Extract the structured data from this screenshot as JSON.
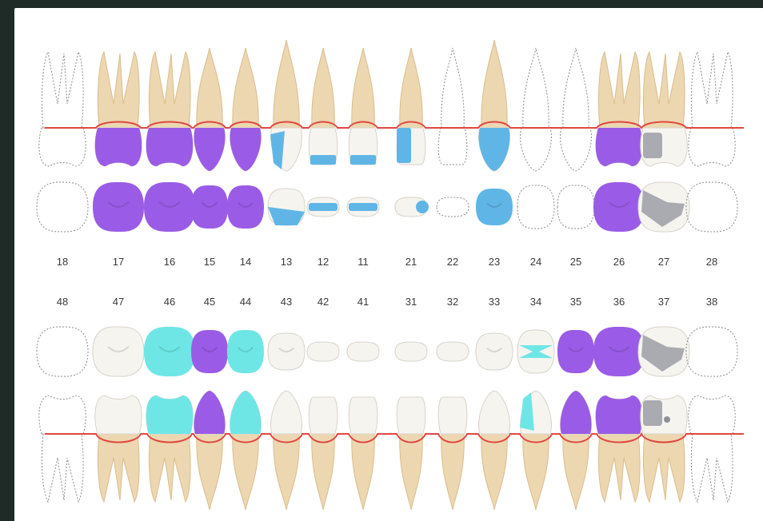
{
  "colors": {
    "root": "#ecd7b1",
    "root_shade": "#d9bd8e",
    "enamel": "#f6f4ef",
    "purple": "#9a5ce6",
    "blue": "#5fb6e6",
    "cyan": "#6fe6e6",
    "metal": "#a9abb0",
    "gum_line": "#e0483f",
    "outline": "#8a8a8a"
  },
  "upper_labels": [
    "18",
    "17",
    "16",
    "15",
    "14",
    "13",
    "12",
    "11",
    "21",
    "22",
    "23",
    "24",
    "25",
    "26",
    "27",
    "28"
  ],
  "lower_labels": [
    "48",
    "47",
    "46",
    "45",
    "44",
    "43",
    "42",
    "41",
    "31",
    "32",
    "33",
    "34",
    "35",
    "36",
    "37",
    "38"
  ],
  "upper_teeth": [
    {
      "n": "18",
      "type": "molar",
      "status": "missing",
      "fill": "none"
    },
    {
      "n": "17",
      "type": "molar",
      "status": "present",
      "fill": "purple"
    },
    {
      "n": "16",
      "type": "molar",
      "status": "present",
      "fill": "purple"
    },
    {
      "n": "15",
      "type": "premolar",
      "status": "present",
      "fill": "purple"
    },
    {
      "n": "14",
      "type": "premolar",
      "status": "present",
      "fill": "purple"
    },
    {
      "n": "13",
      "type": "canine",
      "status": "present",
      "fill": "blue-partial"
    },
    {
      "n": "12",
      "type": "incisor",
      "status": "present",
      "fill": "blue-band"
    },
    {
      "n": "11",
      "type": "incisor",
      "status": "present",
      "fill": "blue-band"
    },
    {
      "n": "21",
      "type": "incisor",
      "status": "present",
      "fill": "blue-side"
    },
    {
      "n": "22",
      "type": "incisor",
      "status": "missing",
      "fill": "none"
    },
    {
      "n": "23",
      "type": "canine",
      "status": "present",
      "fill": "blue"
    },
    {
      "n": "24",
      "type": "premolar",
      "status": "missing",
      "fill": "none"
    },
    {
      "n": "25",
      "type": "premolar",
      "status": "missing",
      "fill": "none"
    },
    {
      "n": "26",
      "type": "molar",
      "status": "present",
      "fill": "purple"
    },
    {
      "n": "27",
      "type": "molar",
      "status": "present",
      "fill": "metal"
    },
    {
      "n": "28",
      "type": "molar",
      "status": "missing",
      "fill": "none"
    }
  ],
  "lower_teeth": [
    {
      "n": "48",
      "type": "molar",
      "status": "missing",
      "fill": "none"
    },
    {
      "n": "47",
      "type": "molar",
      "status": "present",
      "fill": "enamel"
    },
    {
      "n": "46",
      "type": "molar",
      "status": "present",
      "fill": "cyan"
    },
    {
      "n": "45",
      "type": "premolar",
      "status": "present",
      "fill": "purple"
    },
    {
      "n": "44",
      "type": "premolar",
      "status": "present",
      "fill": "cyan"
    },
    {
      "n": "43",
      "type": "canine",
      "status": "present",
      "fill": "enamel"
    },
    {
      "n": "42",
      "type": "incisor",
      "status": "present",
      "fill": "enamel"
    },
    {
      "n": "41",
      "type": "incisor",
      "status": "present",
      "fill": "enamel"
    },
    {
      "n": "31",
      "type": "incisor",
      "status": "present",
      "fill": "enamel"
    },
    {
      "n": "32",
      "type": "incisor",
      "status": "present",
      "fill": "enamel"
    },
    {
      "n": "33",
      "type": "canine",
      "status": "present",
      "fill": "enamel"
    },
    {
      "n": "34",
      "type": "premolar",
      "status": "present",
      "fill": "cyan-partial"
    },
    {
      "n": "35",
      "type": "premolar",
      "status": "present",
      "fill": "purple"
    },
    {
      "n": "36",
      "type": "molar",
      "status": "present",
      "fill": "purple"
    },
    {
      "n": "37",
      "type": "molar",
      "status": "present",
      "fill": "metal"
    },
    {
      "n": "38",
      "type": "molar",
      "status": "missing",
      "fill": "none"
    }
  ]
}
